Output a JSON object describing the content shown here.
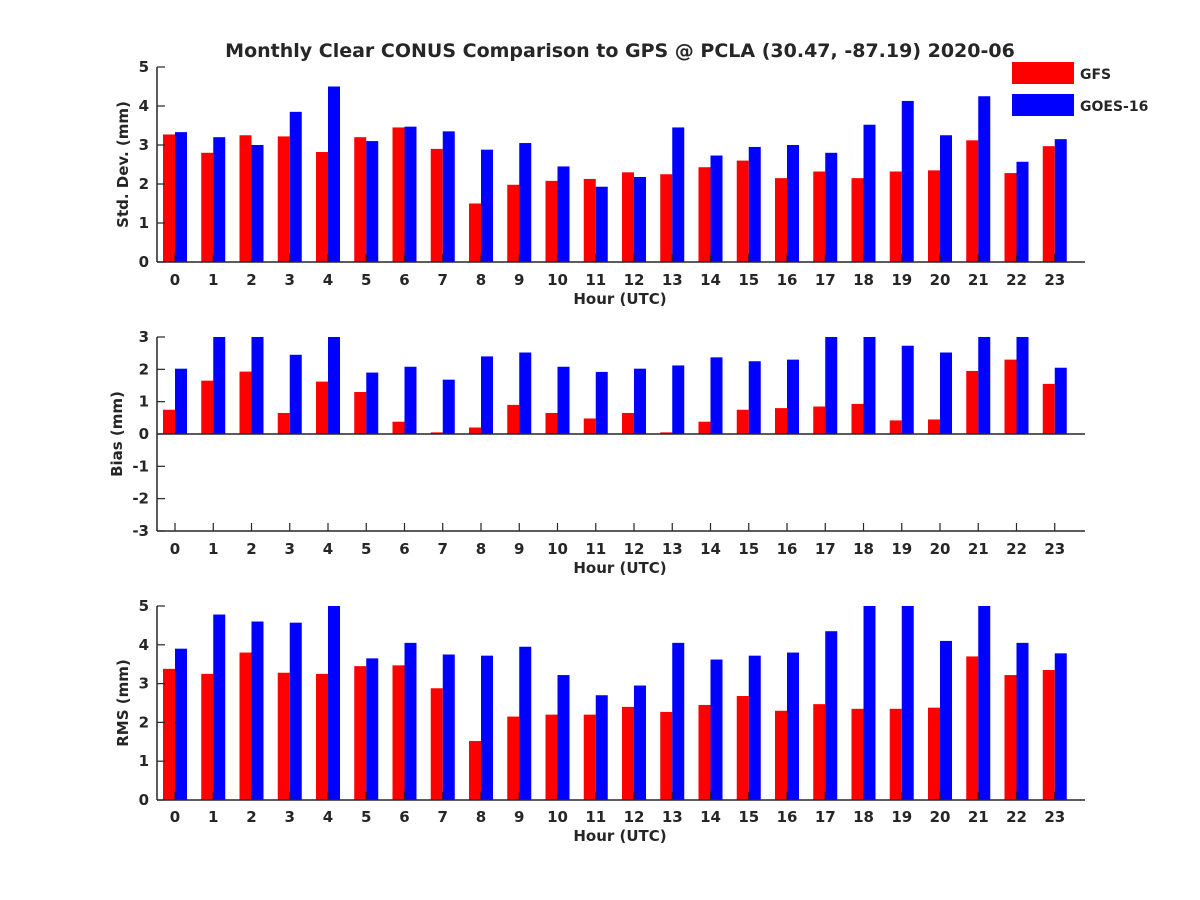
{
  "figure": {
    "title": "Monthly Clear CONUS Comparison to GPS @ PCLA (30.47, -87.19) 2020-06"
  },
  "legend": {
    "placement": "top-right",
    "entries": [
      {
        "name": "GFS",
        "color": "#ff0000"
      },
      {
        "name": "GOES-16",
        "color": "#0000ff"
      }
    ]
  },
  "chart_data": [
    {
      "type": "bar",
      "xlabel": "Hour (UTC)",
      "ylabel": "Std. Dev. (mm)",
      "ylim": [
        0,
        5
      ],
      "yticks": [
        "0",
        "1",
        "2",
        "3",
        "4",
        "5"
      ],
      "categories": [
        "0",
        "1",
        "2",
        "3",
        "4",
        "5",
        "6",
        "7",
        "8",
        "9",
        "10",
        "11",
        "12",
        "13",
        "14",
        "15",
        "16",
        "17",
        "18",
        "19",
        "20",
        "21",
        "22",
        "23"
      ],
      "series": [
        {
          "name": "GFS",
          "color": "#ff0000",
          "values": [
            3.27,
            2.8,
            3.25,
            3.22,
            2.82,
            3.2,
            3.45,
            2.9,
            1.5,
            1.98,
            2.08,
            2.13,
            2.3,
            2.25,
            2.43,
            2.6,
            2.15,
            2.32,
            2.15,
            2.32,
            2.35,
            3.12,
            2.28,
            2.97
          ]
        },
        {
          "name": "GOES-16",
          "color": "#0000ff",
          "values": [
            3.33,
            3.2,
            3.0,
            3.85,
            4.5,
            3.1,
            3.47,
            3.35,
            2.88,
            3.05,
            2.45,
            1.93,
            2.18,
            3.45,
            2.73,
            2.95,
            3.0,
            2.8,
            3.52,
            4.13,
            3.25,
            4.25,
            2.57,
            3.15
          ]
        }
      ]
    },
    {
      "type": "bar",
      "xlabel": "Hour (UTC)",
      "ylabel": "Bias (mm)",
      "ylim": [
        -3,
        3
      ],
      "yticks": [
        "-3",
        "-2",
        "-1",
        "0",
        "1",
        "2",
        "3"
      ],
      "categories": [
        "0",
        "1",
        "2",
        "3",
        "4",
        "5",
        "6",
        "7",
        "8",
        "9",
        "10",
        "11",
        "12",
        "13",
        "14",
        "15",
        "16",
        "17",
        "18",
        "19",
        "20",
        "21",
        "22",
        "23"
      ],
      "series": [
        {
          "name": "GFS",
          "color": "#ff0000",
          "values": [
            0.75,
            1.65,
            1.93,
            0.65,
            1.62,
            1.3,
            0.38,
            0.05,
            0.2,
            0.9,
            0.65,
            0.48,
            0.65,
            0.05,
            0.38,
            0.75,
            0.8,
            0.85,
            0.93,
            0.42,
            0.45,
            1.95,
            2.3,
            1.55
          ]
        },
        {
          "name": "GOES-16",
          "color": "#0000ff",
          "values": [
            2.02,
            3.0,
            3.0,
            2.45,
            3.0,
            1.9,
            2.08,
            1.68,
            2.4,
            2.52,
            2.08,
            1.92,
            2.02,
            2.12,
            2.37,
            2.25,
            2.3,
            3.0,
            3.0,
            2.73,
            2.52,
            3.0,
            3.0,
            2.05
          ]
        }
      ]
    },
    {
      "type": "bar",
      "xlabel": "Hour (UTC)",
      "ylabel": "RMS (mm)",
      "ylim": [
        0,
        5
      ],
      "yticks": [
        "0",
        "1",
        "2",
        "3",
        "4",
        "5"
      ],
      "categories": [
        "0",
        "1",
        "2",
        "3",
        "4",
        "5",
        "6",
        "7",
        "8",
        "9",
        "10",
        "11",
        "12",
        "13",
        "14",
        "15",
        "16",
        "17",
        "18",
        "19",
        "20",
        "21",
        "22",
        "23"
      ],
      "series": [
        {
          "name": "GFS",
          "color": "#ff0000",
          "values": [
            3.38,
            3.25,
            3.8,
            3.28,
            3.25,
            3.45,
            3.47,
            2.88,
            1.52,
            2.15,
            2.2,
            2.2,
            2.4,
            2.27,
            2.45,
            2.68,
            2.3,
            2.47,
            2.35,
            2.35,
            2.38,
            3.7,
            3.22,
            3.35
          ]
        },
        {
          "name": "GOES-16",
          "color": "#0000ff",
          "values": [
            3.9,
            4.78,
            4.6,
            4.57,
            5.0,
            3.65,
            4.05,
            3.75,
            3.72,
            3.95,
            3.22,
            2.7,
            2.95,
            4.05,
            3.62,
            3.72,
            3.8,
            4.35,
            5.0,
            5.0,
            4.1,
            5.0,
            4.05,
            3.78
          ]
        }
      ]
    }
  ]
}
